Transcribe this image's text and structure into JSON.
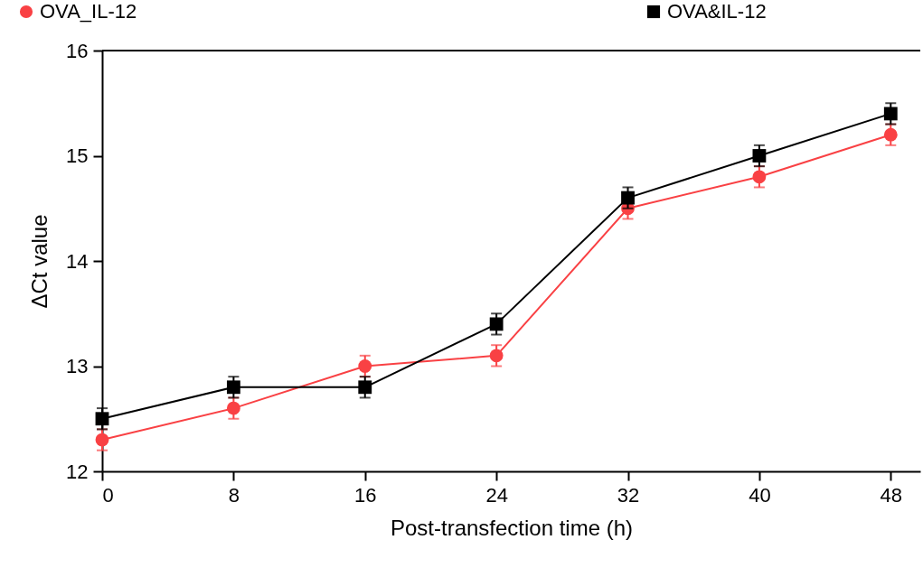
{
  "chart_data": {
    "type": "line",
    "xlabel": "Post-transfection time (h)",
    "ylabel": "ΔCt value",
    "x": [
      0,
      8,
      16,
      24,
      32,
      40,
      48
    ],
    "xlim": [
      0,
      49.8
    ],
    "xticks": [
      0,
      8,
      16,
      24,
      32,
      40,
      48
    ],
    "ylim": [
      12,
      16
    ],
    "yticks": [
      12,
      13,
      14,
      15,
      16
    ],
    "grid": false,
    "legend": "top",
    "series": [
      {
        "name": "OVA_IL-12",
        "color": "#f94144",
        "marker": "circle",
        "values": [
          12.3,
          12.6,
          13.0,
          13.1,
          14.5,
          14.8,
          15.2
        ],
        "errors": [
          0.1,
          0.1,
          0.1,
          0.1,
          0.1,
          0.1,
          0.1
        ]
      },
      {
        "name": "OVA&IL-12",
        "color": "#000000",
        "marker": "square",
        "values": [
          12.5,
          12.8,
          12.8,
          13.4,
          14.6,
          15.0,
          15.4
        ],
        "errors": [
          0.1,
          0.1,
          0.1,
          0.1,
          0.1,
          0.1,
          0.1
        ]
      }
    ]
  }
}
